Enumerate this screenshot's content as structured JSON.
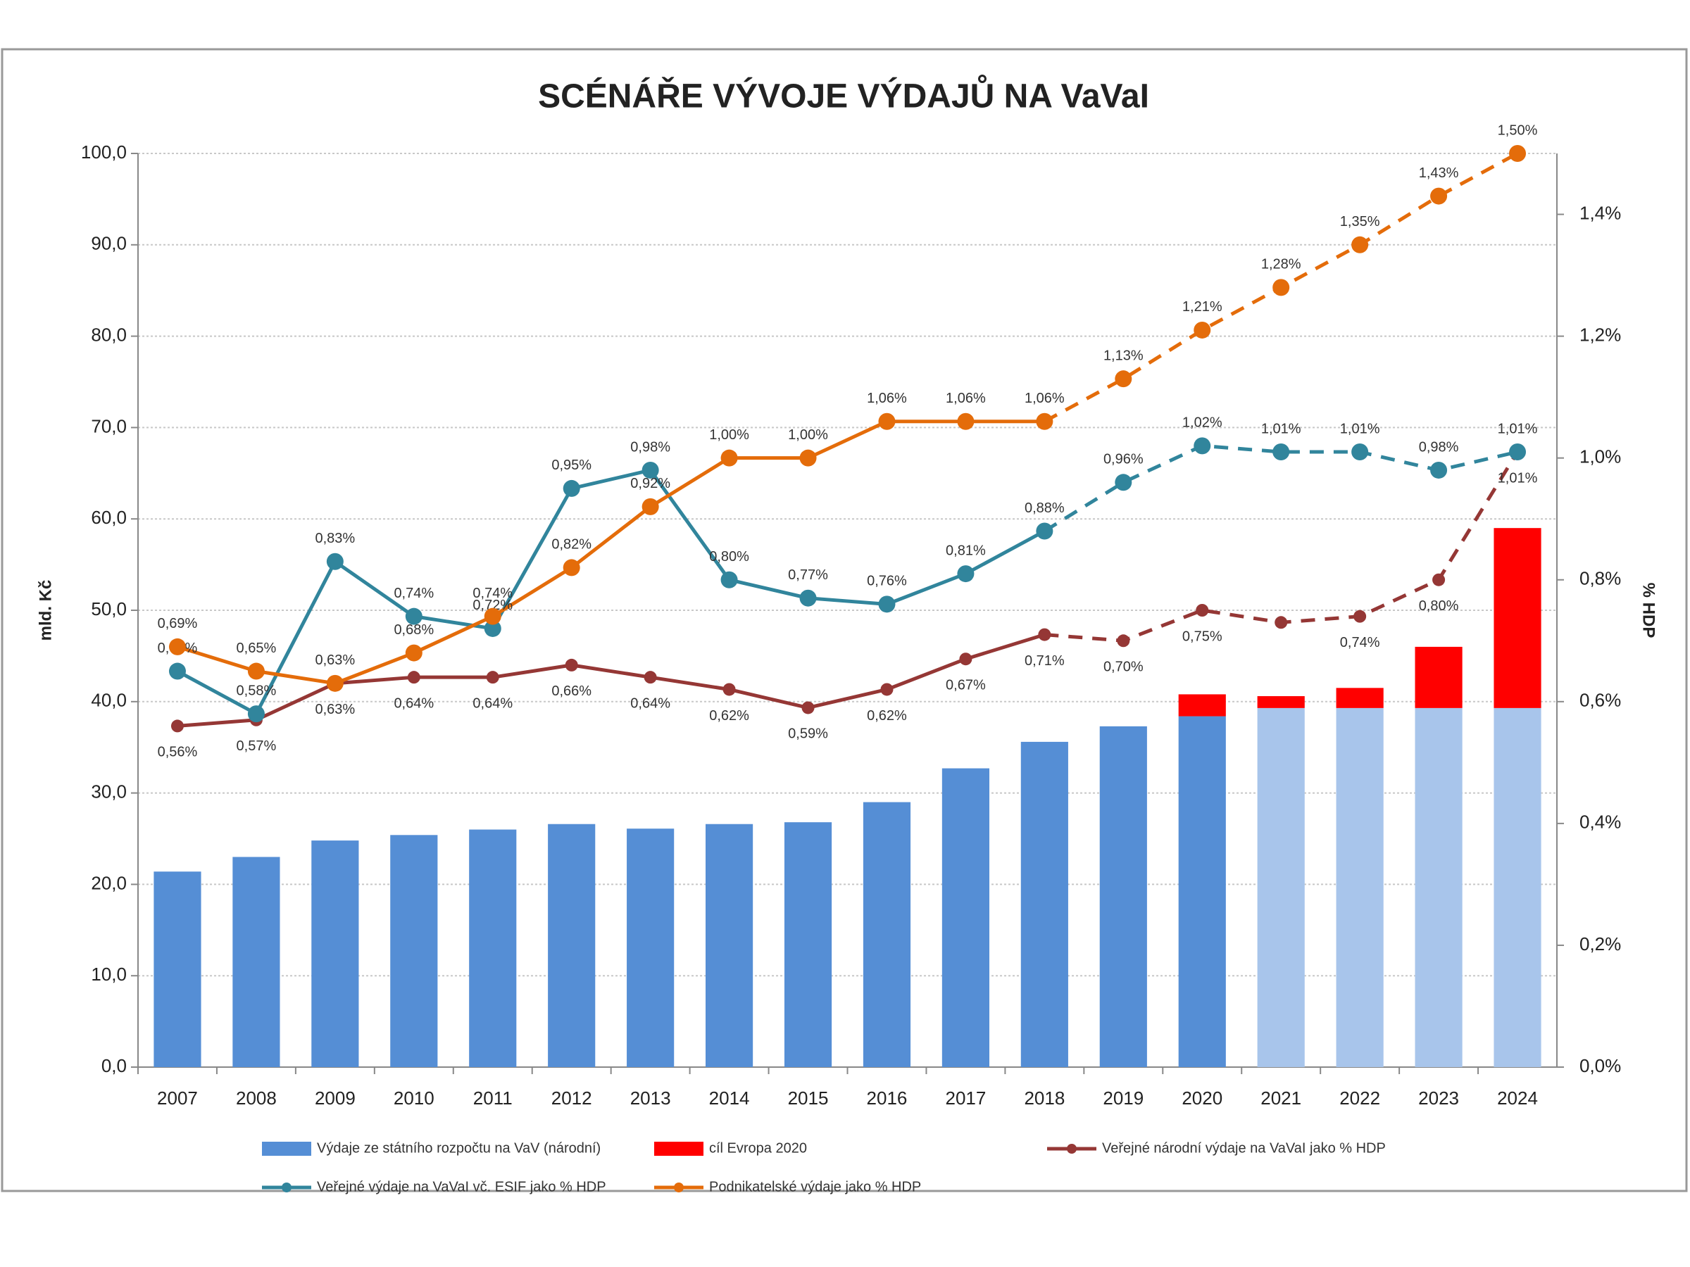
{
  "chart_data": {
    "type": "combo",
    "title": "SCÉNÁŘE VÝVOJE VÝDAJŮ NA VaVaI",
    "y_label": "mld. Kč",
    "y2_label": "% HDP",
    "categories": [
      "2007",
      "2008",
      "2009",
      "2010",
      "2011",
      "2012",
      "2013",
      "2014",
      "2015",
      "2016",
      "2017",
      "2018",
      "2019",
      "2020",
      "2021",
      "2022",
      "2023",
      "2024"
    ],
    "ylim": [
      0,
      100
    ],
    "yticks": [
      {
        "value": 0,
        "label": "0,0"
      },
      {
        "value": 10,
        "label": "10,0"
      },
      {
        "value": 20,
        "label": "20,0"
      },
      {
        "value": 30,
        "label": "30,0"
      },
      {
        "value": 40,
        "label": "40,0"
      },
      {
        "value": 50,
        "label": "50,0"
      },
      {
        "value": 60,
        "label": "60,0"
      },
      {
        "value": 70,
        "label": "70,0"
      },
      {
        "value": 80,
        "label": "80,0"
      },
      {
        "value": 90,
        "label": "90,0"
      },
      {
        "value": 100,
        "label": "100,0"
      }
    ],
    "y2lim": [
      0,
      1.5
    ],
    "y2ticks": [
      {
        "value": 0,
        "label": "0,0%"
      },
      {
        "value": 0.2,
        "label": "0,2%"
      },
      {
        "value": 0.4,
        "label": "0,4%"
      },
      {
        "value": 0.6,
        "label": "0,6%"
      },
      {
        "value": 0.8,
        "label": "0,8%"
      },
      {
        "value": 1.0,
        "label": "1,0%"
      },
      {
        "value": 1.2,
        "label": "1,2%"
      },
      {
        "value": 1.4,
        "label": "1,4%"
      }
    ],
    "grid": true,
    "legend": "bottom",
    "series": [
      {
        "name": "Výdaje ze státního rozpočtu na VaV (národní)",
        "type": "bar",
        "color": "#558ed5",
        "projection_color": "#a8c5eb",
        "projection_from": "2021",
        "values": [
          21.4,
          23.0,
          24.8,
          25.4,
          26.0,
          26.6,
          26.1,
          26.6,
          26.8,
          29.0,
          32.7,
          35.6,
          37.3,
          38.4,
          39.3,
          39.3,
          39.3,
          39.3
        ]
      },
      {
        "name": "cíl Evropa 2020",
        "type": "bar",
        "stacked": true,
        "color": "#ff0000",
        "values": [
          null,
          null,
          null,
          null,
          null,
          null,
          null,
          null,
          null,
          null,
          null,
          null,
          null,
          2.4,
          1.3,
          2.2,
          6.7,
          19.7
        ]
      },
      {
        "name": "Veřejné národní výdaje na VaVaI jako % HDP",
        "type": "line",
        "axis": "y2",
        "color": "#953735",
        "dashed_from": "2018",
        "label_position": "below",
        "marker": "small",
        "values": [
          0.56,
          0.57,
          0.63,
          0.64,
          0.64,
          0.66,
          0.64,
          0.62,
          0.59,
          0.62,
          0.67,
          0.71,
          0.7,
          0.75,
          0.73,
          0.74,
          0.8,
          1.01
        ],
        "value_labels": [
          "0,56%",
          "0,57%",
          "0,63%",
          "0,64%",
          "0,64%",
          "0,66%",
          "0,64%",
          "0,62%",
          "0,59%",
          "0,62%",
          "0,67%",
          "0,71%",
          "0,70%",
          "0,75%",
          null,
          "0,74%",
          "0,80%",
          "1,01%"
        ]
      },
      {
        "name": "Veřejné výdaje na VaVaI vč. ESIF jako % HDP",
        "type": "line",
        "axis": "y2",
        "color": "#31859c",
        "dashed_from": "2018",
        "label_position": "above",
        "marker": "large",
        "values": [
          0.65,
          0.58,
          0.83,
          0.74,
          0.72,
          0.95,
          0.98,
          0.8,
          0.77,
          0.76,
          0.81,
          0.88,
          0.96,
          1.02,
          1.01,
          1.01,
          0.98,
          1.01
        ],
        "value_labels": [
          "0,65%",
          "0,58%",
          "0,83%",
          "0,74%",
          "0,72%",
          "0,95%",
          "0,98%",
          "0,80%",
          "0,77%",
          "0,76%",
          "0,81%",
          "0,88%",
          "0,96%",
          "1,02%",
          "1,01%",
          "1,01%",
          "0,98%",
          "1,01%"
        ]
      },
      {
        "name": "Podnikatelské výdaje jako % HDP",
        "type": "line",
        "axis": "y2",
        "color": "#e46c0a",
        "dashed_from": "2018",
        "label_position": "above",
        "marker": "large",
        "values": [
          0.69,
          0.65,
          0.63,
          0.68,
          0.74,
          0.82,
          0.92,
          1.0,
          1.0,
          1.06,
          1.06,
          1.06,
          1.13,
          1.21,
          1.28,
          1.35,
          1.43,
          1.5
        ],
        "value_labels": [
          "0,69%",
          "0,65%",
          "0,63%",
          "0,68%",
          "0,74%",
          "0,82%",
          "0,92%",
          "1,00%",
          "1,00%",
          "1,06%",
          "1,06%",
          "1,06%",
          "1,13%",
          "1,21%",
          "1,28%",
          "1,35%",
          "1,43%",
          "1,50%"
        ]
      }
    ]
  }
}
